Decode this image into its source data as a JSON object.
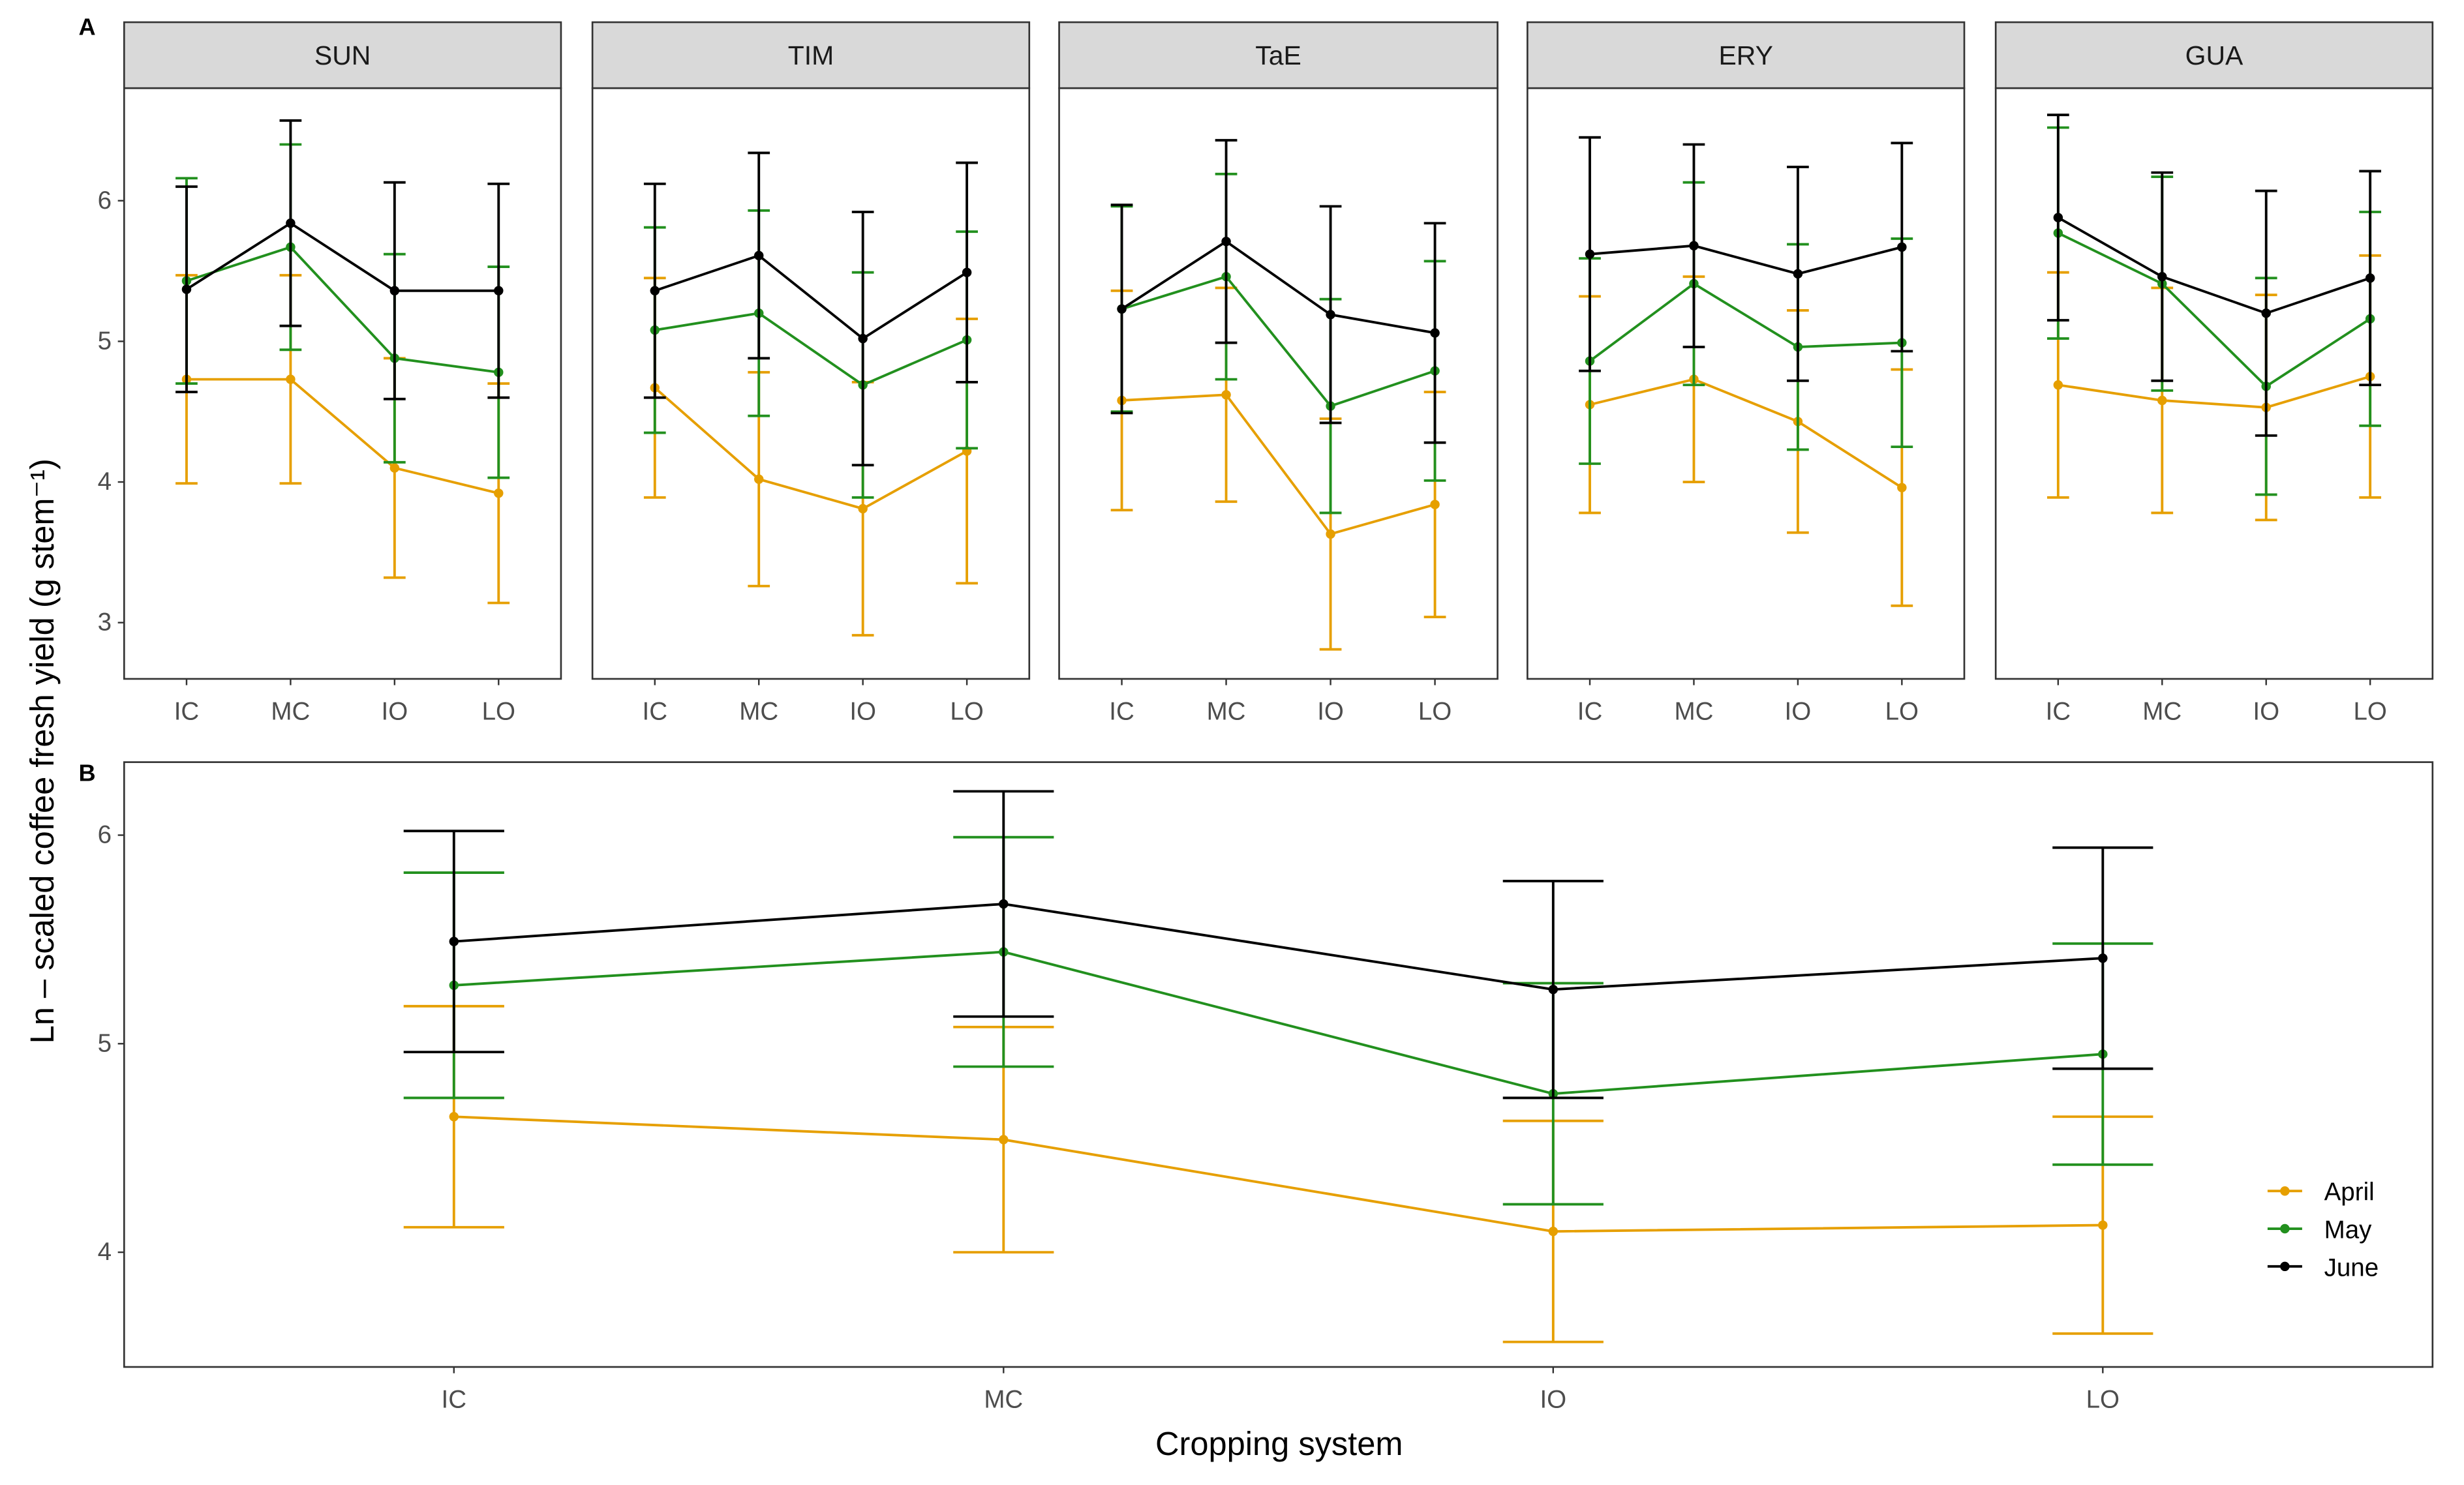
{
  "chart_data": [
    {
      "panel_tag": "A",
      "type": "line",
      "facets": [
        "SUN",
        "TIM",
        "TaE",
        "ERY",
        "GUA"
      ],
      "categories": [
        "IC",
        "MC",
        "IO",
        "LO"
      ],
      "ylim": [
        2.6,
        6.8
      ],
      "yticks": [
        3,
        4,
        5,
        6
      ],
      "ylabel": "Ln – scaled coffee fresh yield (g stem⁻¹)",
      "series": [
        {
          "name": "April",
          "color": "#E69F00",
          "facet_values": {
            "SUN": {
              "mean": [
                4.73,
                4.73,
                4.1,
                3.92
              ],
              "err": [
                0.74,
                0.74,
                0.78,
                0.78
              ]
            },
            "TIM": {
              "mean": [
                4.67,
                4.02,
                3.81,
                4.22
              ],
              "err": [
                0.78,
                0.76,
                0.9,
                0.94
              ]
            },
            "TaE": {
              "mean": [
                4.58,
                4.62,
                3.63,
                3.84
              ],
              "err": [
                0.78,
                0.76,
                0.82,
                0.8
              ]
            },
            "ERY": {
              "mean": [
                4.55,
                4.73,
                4.43,
                3.96
              ],
              "err": [
                0.77,
                0.73,
                0.79,
                0.84
              ]
            },
            "GUA": {
              "mean": [
                4.69,
                4.58,
                4.53,
                4.75
              ],
              "err": [
                0.8,
                0.8,
                0.8,
                0.86
              ]
            }
          }
        },
        {
          "name": "May",
          "color": "#22901E",
          "facet_values": {
            "SUN": {
              "mean": [
                5.43,
                5.67,
                4.88,
                4.78
              ],
              "err": [
                0.73,
                0.73,
                0.74,
                0.75
              ]
            },
            "TIM": {
              "mean": [
                5.08,
                5.2,
                4.69,
                5.01
              ],
              "err": [
                0.73,
                0.73,
                0.8,
                0.77
              ]
            },
            "TaE": {
              "mean": [
                5.23,
                5.46,
                4.54,
                4.79
              ],
              "err": [
                0.73,
                0.73,
                0.76,
                0.78
              ]
            },
            "ERY": {
              "mean": [
                4.86,
                5.41,
                4.96,
                4.99
              ],
              "err": [
                0.73,
                0.72,
                0.73,
                0.74
              ]
            },
            "GUA": {
              "mean": [
                5.77,
                5.41,
                4.68,
                5.16
              ],
              "err": [
                0.75,
                0.76,
                0.77,
                0.76
              ]
            }
          }
        },
        {
          "name": "June",
          "color": "#000000",
          "facet_values": {
            "SUN": {
              "mean": [
                5.37,
                5.84,
                5.36,
                5.36
              ],
              "err": [
                0.73,
                0.73,
                0.77,
                0.76
              ]
            },
            "TIM": {
              "mean": [
                5.36,
                5.61,
                5.02,
                5.49
              ],
              "err": [
                0.76,
                0.73,
                0.9,
                0.78
              ]
            },
            "TaE": {
              "mean": [
                5.23,
                5.71,
                5.19,
                5.06
              ],
              "err": [
                0.74,
                0.72,
                0.77,
                0.78
              ]
            },
            "ERY": {
              "mean": [
                5.62,
                5.68,
                5.48,
                5.67
              ],
              "err": [
                0.83,
                0.72,
                0.76,
                0.74
              ]
            },
            "GUA": {
              "mean": [
                5.88,
                5.46,
                5.2,
                5.45
              ],
              "err": [
                0.73,
                0.74,
                0.87,
                0.76
              ]
            }
          }
        }
      ]
    },
    {
      "panel_tag": "B",
      "type": "line",
      "categories": [
        "IC",
        "MC",
        "IO",
        "LO"
      ],
      "xlabel": "Cropping system",
      "ylim": [
        3.45,
        6.35
      ],
      "yticks": [
        4,
        5,
        6
      ],
      "legend": "right",
      "series": [
        {
          "name": "April",
          "color": "#E69F00",
          "mean": [
            4.65,
            4.54,
            4.1,
            4.13
          ],
          "err": [
            0.53,
            0.54,
            0.53,
            0.52
          ]
        },
        {
          "name": "May",
          "color": "#22901E",
          "mean": [
            5.28,
            5.44,
            4.76,
            4.95
          ],
          "err": [
            0.54,
            0.55,
            0.53,
            0.53
          ]
        },
        {
          "name": "June",
          "color": "#000000",
          "mean": [
            5.49,
            5.67,
            5.26,
            5.41
          ],
          "err": [
            0.53,
            0.54,
            0.52,
            0.53
          ]
        }
      ]
    }
  ]
}
